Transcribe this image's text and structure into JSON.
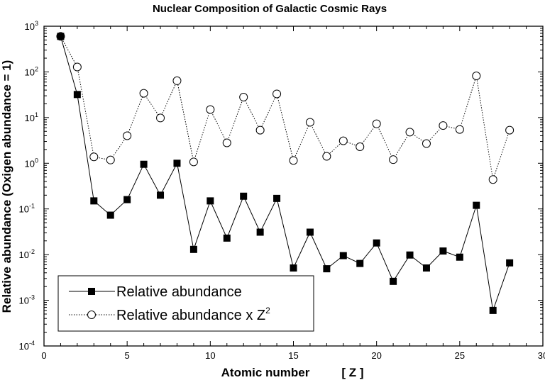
{
  "chart_data": {
    "type": "line",
    "title": "Nuclear Composition of Galactic Cosmic Rays",
    "xlabel": "Atomic number",
    "xlabel_symbol": "[ Z ]",
    "ylabel": "Relative abundance (Oxigen abundance = 1)",
    "xlim": [
      0,
      30
    ],
    "ylim": [
      0.0001,
      1000
    ],
    "yscale": "log",
    "grid": false,
    "legend_position": "bottom-left",
    "x_ticks": [
      "0",
      "5",
      "10",
      "15",
      "20",
      "25",
      "30"
    ],
    "y_ticks": [
      {
        "base": "10",
        "exp": "3"
      },
      {
        "base": "10",
        "exp": "2"
      },
      {
        "base": "10",
        "exp": "1"
      },
      {
        "base": "10",
        "exp": "0"
      },
      {
        "base": "10",
        "exp": "-1"
      },
      {
        "base": "10",
        "exp": "-2"
      },
      {
        "base": "10",
        "exp": "-3"
      },
      {
        "base": "10",
        "exp": "-4"
      }
    ],
    "x": [
      1,
      2,
      3,
      4,
      5,
      6,
      7,
      8,
      9,
      10,
      11,
      12,
      13,
      14,
      15,
      16,
      17,
      18,
      19,
      20,
      21,
      22,
      23,
      24,
      25,
      26,
      27,
      28
    ],
    "series": [
      {
        "name": "Relative abundance",
        "legend_label": "Relative abundance",
        "marker": "filled-square",
        "line": "solid",
        "color": "#000000",
        "values": [
          600,
          32,
          0.15,
          0.073,
          0.16,
          0.95,
          0.2,
          1.0,
          0.013,
          0.15,
          0.023,
          0.19,
          0.031,
          0.17,
          0.0051,
          0.031,
          0.0049,
          0.0095,
          0.0064,
          0.018,
          0.0026,
          0.0098,
          0.0051,
          0.012,
          0.0088,
          0.12,
          0.0006,
          0.0066
        ]
      },
      {
        "name": "Relative abundance x Z2",
        "legend_label_main": "Relative abundance x Z",
        "legend_label_sup": "2",
        "marker": "open-circle",
        "line": "dotted",
        "color": "#000000",
        "values": [
          600,
          128,
          1.38,
          1.18,
          4.0,
          34,
          9.8,
          64,
          1.07,
          15.0,
          2.8,
          28,
          5.3,
          33,
          1.15,
          7.9,
          1.42,
          3.1,
          2.3,
          7.3,
          1.2,
          4.8,
          2.7,
          6.7,
          5.5,
          82,
          0.44,
          5.3
        ]
      }
    ]
  }
}
